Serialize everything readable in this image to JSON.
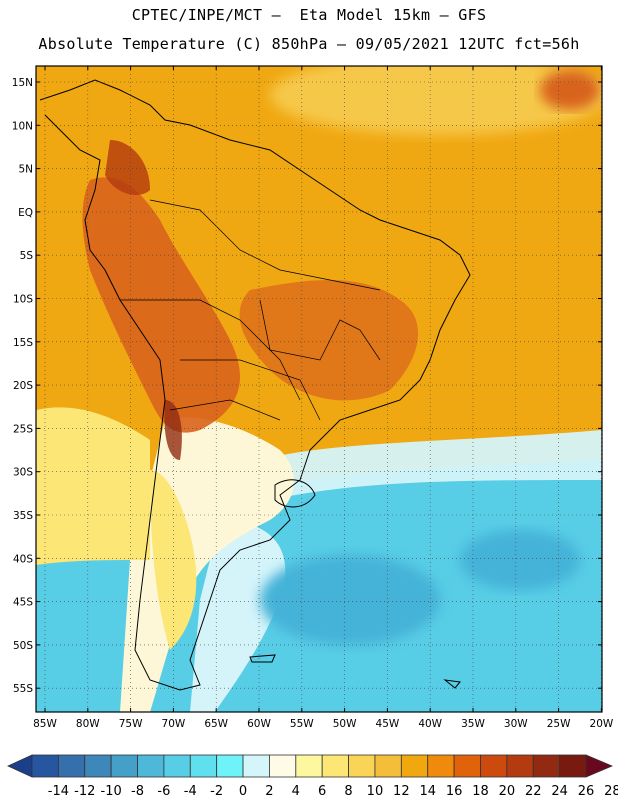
{
  "header": {
    "line1": "CPTEC/INPE/MCT —  Eta Model 15km — GFS",
    "line2": "Absolute Temperature (C) 850hPa — 09/05/2021 12UTC fct=56h"
  },
  "lat_labels": [
    "15N",
    "10N",
    "5N",
    "EQ",
    "5S",
    "10S",
    "15S",
    "20S",
    "25S",
    "30S",
    "35S",
    "40S",
    "45S",
    "50S",
    "55S"
  ],
  "lon_labels": [
    "85W",
    "80W",
    "75W",
    "70W",
    "65W",
    "60W",
    "55W",
    "50W",
    "45W",
    "40W",
    "35W",
    "30W",
    "25W",
    "20W"
  ],
  "colorbar": {
    "labels": [
      "-14",
      "-12",
      "-10",
      "-8",
      "-6",
      "-4",
      "-2",
      "0",
      "2",
      "4",
      "6",
      "8",
      "10",
      "12",
      "14",
      "16",
      "18",
      "20",
      "22",
      "24",
      "26",
      "28"
    ],
    "colors": [
      "#1c3f8c",
      "#2756a0",
      "#3570ad",
      "#3e87bb",
      "#44a0c8",
      "#4db8d8",
      "#58cde6",
      "#60e0ee",
      "#6ef4f8",
      "#d4f6fb",
      "#fffbe6",
      "#fdf8a0",
      "#fce676",
      "#fad456",
      "#f5be3a",
      "#f1a80e",
      "#f08a0c",
      "#e0620a",
      "#cc4a0e",
      "#b43a10",
      "#922a12",
      "#781a10",
      "#6a0820"
    ]
  },
  "colors": {
    "hot": "#d8631c",
    "warm": "#f0a812",
    "mild": "#f6c848",
    "pale": "#fdf7d8",
    "cool": "#d4f4fa",
    "cold": "#58cde6",
    "colder": "#44b2d8"
  }
}
